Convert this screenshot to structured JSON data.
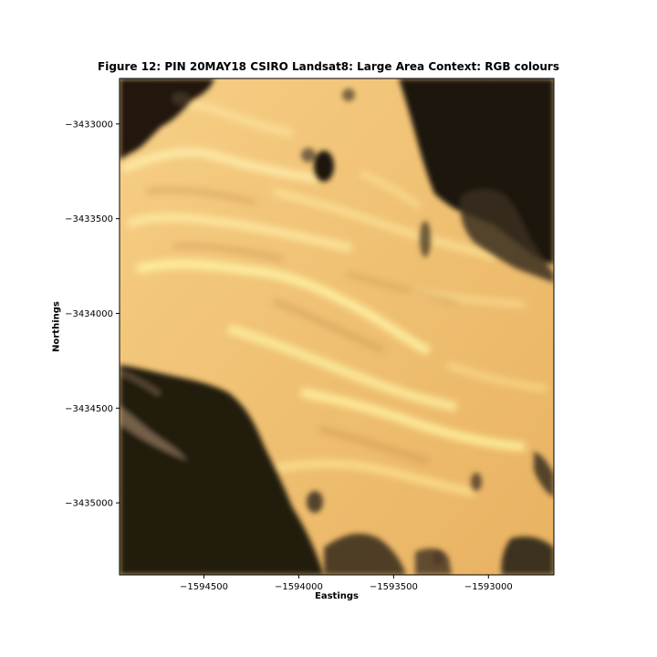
{
  "figure": {
    "title": "Figure 12: PIN 20MAY18 CSIRO Landsat8: Large Area Context: RGB colours",
    "xlabel": "Eastings",
    "ylabel": "Northings"
  },
  "chart_data": {
    "type": "heatmap",
    "title": "Figure 12: PIN 20MAY18 CSIRO Landsat8: Large Area Context: RGB colours",
    "xlabel": "Eastings",
    "ylabel": "Northings",
    "xlim": [
      -1594945,
      -1592655
    ],
    "ylim": [
      -3435380,
      -3432760
    ],
    "xticks": [
      -1594500,
      -1594000,
      -1593500,
      -1593000
    ],
    "xtick_labels": [
      "−1594500",
      "−1594000",
      "−1593500",
      "−1593000"
    ],
    "yticks": [
      -3433000,
      -3433500,
      -3434000,
      -3434500,
      -3435000
    ],
    "ytick_labels": [
      "−3433000",
      "−3433500",
      "−3434000",
      "−3434500",
      "−3435000"
    ],
    "grid": false,
    "colors": {
      "sand": "#f0c071",
      "sand_light": "#fde59a",
      "sand_mid": "#e8b466",
      "dark_vegetation": "#1c160e",
      "mid_vegetation": "#5a4a32"
    }
  }
}
